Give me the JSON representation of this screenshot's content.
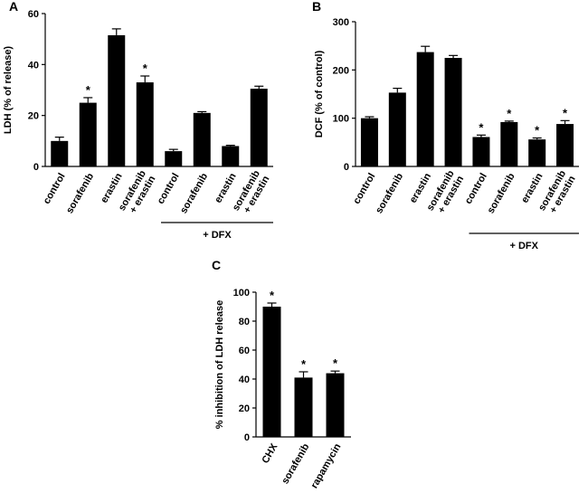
{
  "chart_data": [
    {
      "type": "bar",
      "panel": "A",
      "ylabel": "LDH (% of release)",
      "categories": [
        "control",
        "sorafenib",
        "erastin",
        [
          "sorafenib",
          "+ erastin"
        ],
        "control",
        "sorafenib",
        "erastin",
        [
          "sorafenib",
          "+ erastin"
        ]
      ],
      "values": [
        10,
        25,
        51.5,
        33,
        6,
        21,
        8,
        30.5
      ],
      "errors": [
        1.5,
        2,
        2.5,
        2.5,
        0.7,
        0.5,
        0.3,
        1
      ],
      "value_markers": [
        null,
        "*",
        null,
        "*",
        null,
        null,
        null,
        null
      ],
      "group_label": "+ DFX",
      "color": "#000000",
      "ylim": [
        0,
        60
      ],
      "yticks": [
        0,
        20,
        40,
        60
      ]
    },
    {
      "type": "bar",
      "panel": "B",
      "ylabel": "DCF (% of control)",
      "categories": [
        "control",
        "sorafenib",
        "erastin",
        [
          "sorafenib",
          "+ erastin"
        ],
        "control",
        "sorafenib",
        "erastin",
        [
          "sorafenib",
          "+ erastin"
        ]
      ],
      "values": [
        100,
        153,
        237,
        225,
        61,
        92,
        56,
        88
      ],
      "errors": [
        3,
        9,
        12,
        5,
        4,
        2,
        3,
        7
      ],
      "value_markers": [
        null,
        null,
        null,
        null,
        "*",
        "*",
        "*",
        "*"
      ],
      "group_label": "+ DFX",
      "color": "#000000",
      "ylim": [
        0,
        300
      ],
      "yticks": [
        0,
        100,
        200,
        300
      ]
    },
    {
      "type": "bar",
      "panel": "C",
      "ylabel": "% inhibition of LDH release",
      "categories": [
        "CHX",
        "sorafenib",
        "rapamycin"
      ],
      "values": [
        90,
        41,
        44
      ],
      "errors": [
        2.5,
        4,
        1.5
      ],
      "value_markers": [
        "*",
        "*",
        "*"
      ],
      "color": "#000000",
      "ylim": [
        0,
        100
      ],
      "yticks": [
        0,
        20,
        40,
        60,
        80,
        100
      ]
    }
  ]
}
